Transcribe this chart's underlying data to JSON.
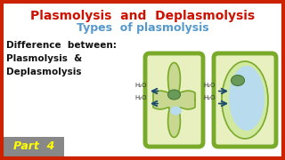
{
  "bg_color": "#ffffff",
  "border_color": "#cc2200",
  "title1": "Plasmolysis  and  Deplasmolysis",
  "title1_color": "#cc1100",
  "title2": "Types  of plasmolysis",
  "title2_color": "#5599cc",
  "body_text": "Difference  between:\nPlasmolysis  &\nDeplasmolysis",
  "body_color": "#111111",
  "part_bg": "#888888",
  "part_text": "Part  4",
  "part_text_color": "#ffff00",
  "cell_wall_color": "#7aaa2a",
  "cell_wall_lw": 4,
  "cell_fill_color": "#e8f0c0",
  "vacuole_color": "#b8dced",
  "nucleus_color": "#6a9a5a",
  "nucleus_outline": "#4a7a3a",
  "arrow_color": "#1a4a70",
  "h2o_color": "#333333",
  "plasmolyzed_membrane_color": "#c8d890",
  "plasmolyzed_membrane_outline": "#7aaa2a",
  "turgid_membrane_color": "#d0e8a0",
  "turgid_membrane_outline": "#7aaa2a"
}
